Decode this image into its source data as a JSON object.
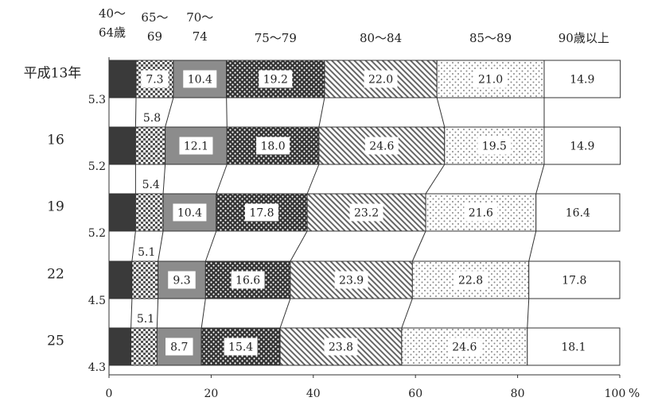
{
  "chart_data": {
    "type": "bar",
    "stacked": true,
    "percent": true,
    "orientation": "horizontal",
    "title": "",
    "xlabel": "",
    "ylabel": "",
    "xlim": [
      0,
      100
    ],
    "x_ticks": [
      "0",
      "20",
      "40",
      "60",
      "80",
      "100"
    ],
    "x_unit": "%",
    "categories": [
      "平成13年",
      "16",
      "19",
      "22",
      "25"
    ],
    "series": [
      {
        "name": "40〜64歳",
        "name_lines": [
          "40〜",
          "64歳"
        ],
        "values": [
          5.3,
          5.2,
          5.2,
          4.5,
          4.3
        ],
        "color": "#3a3a3a",
        "pattern": "solid"
      },
      {
        "name": "65〜69",
        "name_lines": [
          "65〜",
          "69"
        ],
        "values": [
          7.3,
          5.8,
          5.4,
          5.1,
          5.1
        ],
        "color": "#555555",
        "pattern": "checker"
      },
      {
        "name": "70〜74",
        "name_lines": [
          "70〜",
          "74"
        ],
        "values": [
          10.4,
          12.1,
          10.4,
          9.3,
          8.7
        ],
        "color": "#8c8c8c",
        "pattern": "solid"
      },
      {
        "name": "75〜79",
        "name_lines": [
          "75〜79"
        ],
        "values": [
          19.2,
          18.0,
          17.8,
          16.6,
          15.4
        ],
        "color": "#333333",
        "pattern": "dots"
      },
      {
        "name": "80〜84",
        "name_lines": [
          "80〜84"
        ],
        "values": [
          22.0,
          24.6,
          23.2,
          23.9,
          23.8
        ],
        "color": "#666666",
        "pattern": "hatch"
      },
      {
        "name": "85〜89",
        "name_lines": [
          "85〜89"
        ],
        "values": [
          21.0,
          19.5,
          21.6,
          22.8,
          24.6
        ],
        "color": "#999999",
        "pattern": "sparse-dots"
      },
      {
        "name": "90歳以上",
        "name_lines": [
          "90歳以上"
        ],
        "values": [
          14.9,
          14.9,
          16.4,
          17.8,
          18.1
        ],
        "color": "#ffffff",
        "pattern": "none"
      }
    ],
    "value_labels": [
      [
        "5.3",
        "7.3",
        "10.4",
        "19.2",
        "22.0",
        "21.0",
        "14.9"
      ],
      [
        "5.2",
        "5.8",
        "12.1",
        "18.0",
        "24.6",
        "19.5",
        "14.9"
      ],
      [
        "5.2",
        "5.4",
        "10.4",
        "17.8",
        "23.2",
        "21.6",
        "16.4"
      ],
      [
        "4.5",
        "5.1",
        "9.3",
        "16.6",
        "23.9",
        "22.8",
        "17.8"
      ],
      [
        "4.3",
        "5.1",
        "8.7",
        "15.4",
        "23.8",
        "24.6",
        "18.1"
      ]
    ],
    "connector_lines": true,
    "grid": false,
    "legend": "top"
  }
}
